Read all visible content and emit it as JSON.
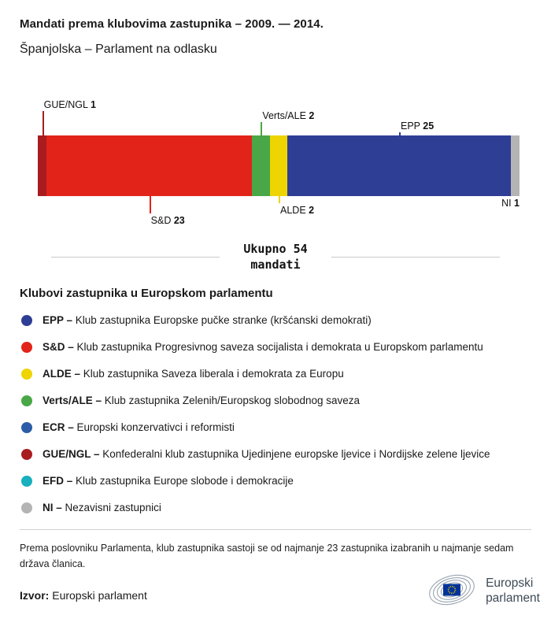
{
  "header": {
    "title": "Mandati prema klubovima zastupnika – 2009. — 2014.",
    "subtitle": "Španjolska – Parlament na odlasku"
  },
  "chart_data": {
    "type": "bar",
    "orientation": "horizontal-stacked",
    "title": "Mandati prema klubovima zastupnika – 2009. — 2014.",
    "subtitle": "Španjolska – Parlament na odlasku",
    "total_seats": 54,
    "total_label": "Ukupno 54 mandati",
    "segments": [
      {
        "group": "GUE/NGL",
        "seats": 1,
        "color": "#a81c20",
        "label_position": "top"
      },
      {
        "group": "S&D",
        "seats": 23,
        "color": "#e2231a",
        "label_position": "bottom"
      },
      {
        "group": "Verts/ALE",
        "seats": 2,
        "color": "#4aa747",
        "label_position": "top"
      },
      {
        "group": "ALDE",
        "seats": 2,
        "color": "#eed400",
        "label_position": "bottom"
      },
      {
        "group": "EPP",
        "seats": 25,
        "color": "#2e3e95",
        "label_position": "top"
      },
      {
        "group": "NI",
        "seats": 1,
        "color": "#b4b4b4",
        "label_position": "bottom"
      }
    ]
  },
  "total": {
    "line1": "Ukupno 54",
    "line2": "mandati"
  },
  "legend": {
    "title": "Klubovi zastupnika u Europskom parlamentu",
    "items": [
      {
        "abbr": "EPP –",
        "desc": "Klub zastupnika Europske pučke stranke (kršćanski demokrati)",
        "color": "#2e3e95"
      },
      {
        "abbr": "S&D –",
        "desc": "Klub zastupnika Progresivnog saveza socijalista i demokrata u Europskom parlamentu",
        "color": "#e2231a"
      },
      {
        "abbr": "ALDE –",
        "desc": "Klub zastupnika Saveza liberala i demokrata za Europu",
        "color": "#eed400"
      },
      {
        "abbr": "Verts/ALE –",
        "desc": "Klub zastupnika Zelenih/Europskog slobodnog saveza",
        "color": "#4aa747"
      },
      {
        "abbr": "ECR –",
        "desc": "Europski konzervativci i reformisti",
        "color": "#2d5ca7"
      },
      {
        "abbr": "GUE/NGL –",
        "desc": "Konfederalni klub zastupnika Ujedinjene europske ljevice i Nordijske zelene ljevice",
        "color": "#a81c20"
      },
      {
        "abbr": "EFD –",
        "desc": "Klub zastupnika Europe slobode i demokracije",
        "color": "#18afbe"
      },
      {
        "abbr": "NI –",
        "desc": "Nezavisni zastupnici",
        "color": "#b4b4b4"
      }
    ]
  },
  "footnote": "Prema poslovniku Parlamenta, klub zastupnika sastoji se od najmanje 23 zastupnika izabranih u najmanje sedam država članica.",
  "source": {
    "label": "Izvor:",
    "text": "Europski parlament"
  },
  "logo": {
    "line1": "Europski",
    "line2": "parlament"
  }
}
